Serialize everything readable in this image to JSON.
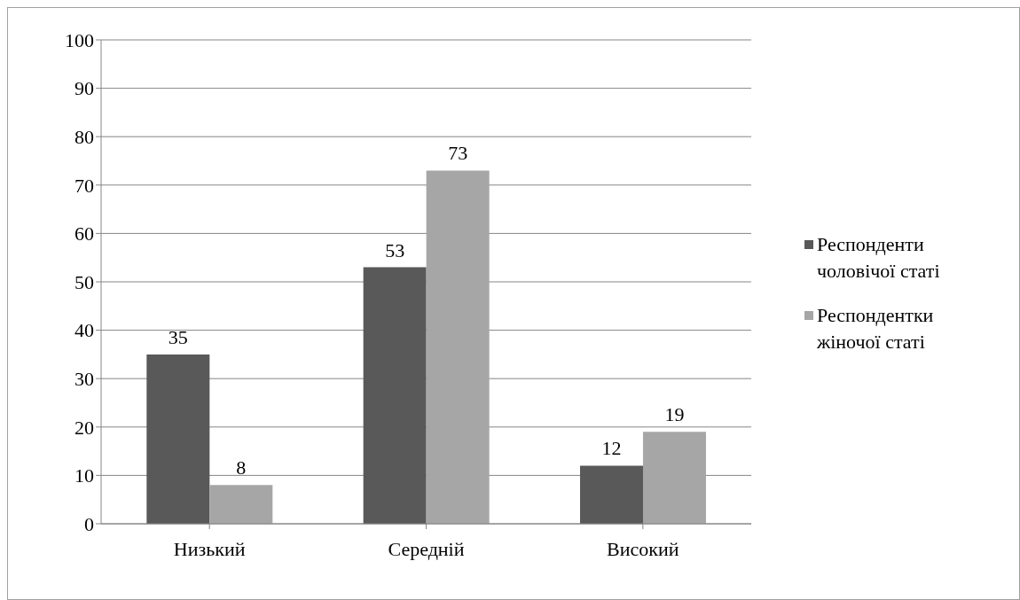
{
  "chart_data": {
    "type": "bar",
    "categories": [
      "Низький",
      "Середній",
      "Високий"
    ],
    "series": [
      {
        "name": "Респонденти чоловічої статі",
        "color": "#595959",
        "values": [
          35,
          53,
          12
        ]
      },
      {
        "name": "Респондентки жіночої статі",
        "color": "#a6a6a6",
        "values": [
          8,
          73,
          19
        ]
      }
    ],
    "ylim": [
      0,
      100
    ],
    "yticks": [
      0,
      10,
      20,
      30,
      40,
      50,
      60,
      70,
      80,
      90,
      100
    ],
    "grid": "y",
    "legend": "right",
    "data_labels": true
  }
}
